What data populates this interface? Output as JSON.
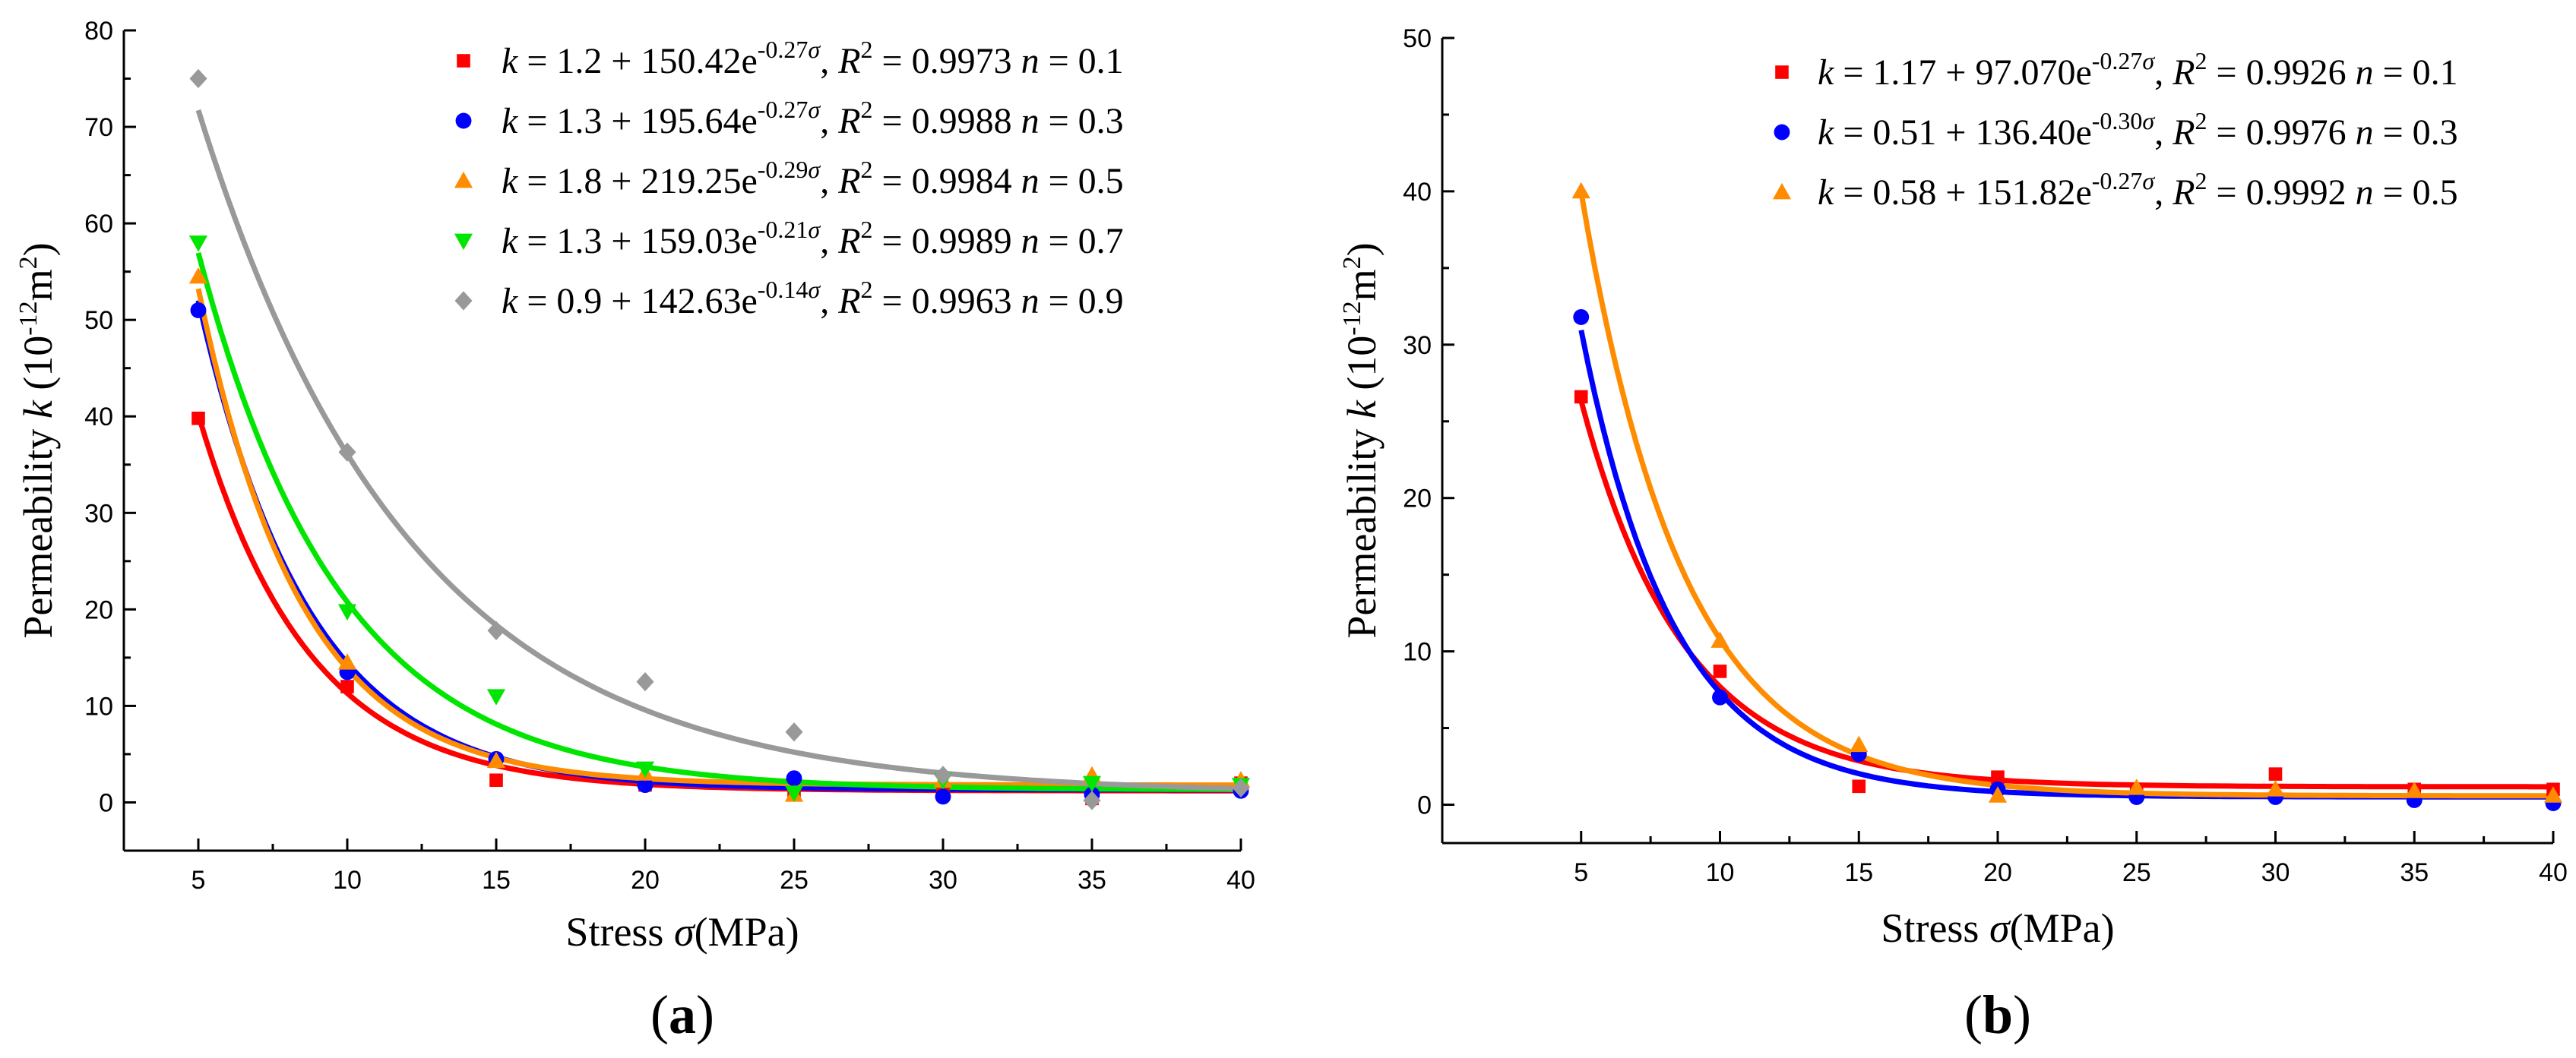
{
  "chart_data": [
    {
      "type": "scatter",
      "panel_label": {
        "open": "(",
        "letter": "a",
        "close": ")"
      },
      "xlabel": {
        "text": "Stress ",
        "symbol": "σ",
        "unit": "(MPa)"
      },
      "ylabel": {
        "text": "Permeability ",
        "symbol": "k",
        "unit_prefix": " (10",
        "unit_exp": "-12",
        "unit_mid": "m",
        "unit_exp2": "2",
        "unit_suffix": ")"
      },
      "xlim": [
        2.5,
        40
      ],
      "ylim": [
        -5,
        80
      ],
      "x_ticks": [
        5,
        10,
        15,
        20,
        25,
        30,
        35,
        40
      ],
      "y_ticks": [
        0,
        10,
        20,
        30,
        40,
        50,
        60,
        70,
        80
      ],
      "x": [
        5,
        10,
        15,
        20,
        25,
        30,
        35,
        40
      ],
      "legend_position": "top-right",
      "series": [
        {
          "name": "n = 0.1",
          "color": "#ff0000",
          "marker": "square",
          "values": [
            39.8,
            12.0,
            2.3,
            1.8,
            1.0,
            0.8,
            0.4,
            2.0
          ],
          "fit": {
            "a": 1.2,
            "b": 150.42,
            "c": 0.27
          },
          "legend": {
            "a": "1.2",
            "b": "150.42",
            "exp": "-0.27",
            "r2": "0.9973",
            "n": "0.1"
          }
        },
        {
          "name": "n = 0.3",
          "color": "#0000ff",
          "marker": "circle",
          "values": [
            51.0,
            13.5,
            4.5,
            1.8,
            2.5,
            0.6,
            0.8,
            1.2
          ],
          "fit": {
            "a": 1.3,
            "b": 195.64,
            "c": 0.27
          },
          "legend": {
            "a": "1.3",
            "b": "195.64",
            "exp": "-0.27",
            "r2": "0.9988",
            "n": "0.3"
          }
        },
        {
          "name": "n = 0.5",
          "color": "#ff8c00",
          "marker": "triangle-up",
          "values": [
            54.5,
            14.5,
            4.3,
            3.0,
            0.8,
            2.3,
            2.8,
            2.3
          ],
          "fit": {
            "a": 1.8,
            "b": 219.25,
            "c": 0.29
          },
          "legend": {
            "a": "1.8",
            "b": "219.25",
            "exp": "-0.29",
            "r2": "0.9984",
            "n": "0.5"
          }
        },
        {
          "name": "n = 0.7",
          "color": "#00e600",
          "marker": "triangle-down",
          "values": [
            58.0,
            19.8,
            11.0,
            3.5,
            1.0,
            2.3,
            2.0,
            1.8
          ],
          "fit": {
            "a": 1.3,
            "b": 159.03,
            "c": 0.21
          },
          "legend": {
            "a": "1.3",
            "b": "159.03",
            "exp": "-0.21",
            "r2": "0.9989",
            "n": "0.7"
          }
        },
        {
          "name": "n = 0.9",
          "color": "#999999",
          "marker": "diamond",
          "values": [
            75.0,
            36.3,
            17.8,
            12.5,
            7.3,
            2.8,
            0.2,
            1.5
          ],
          "fit": {
            "a": 0.9,
            "b": 142.63,
            "c": 0.14
          },
          "legend": {
            "a": "0.9",
            "b": "142.63",
            "exp": "-0.14",
            "r2": "0.9963",
            "n": "0.9"
          }
        }
      ]
    },
    {
      "type": "scatter",
      "panel_label": {
        "open": "(",
        "letter": "b",
        "close": ")"
      },
      "xlabel": {
        "text": "Stress ",
        "symbol": "σ",
        "unit": "(MPa)"
      },
      "ylabel": {
        "text": "Permeability ",
        "symbol": "k",
        "unit_prefix": " (10",
        "unit_exp": "-12",
        "unit_mid": "m",
        "unit_exp2": "2",
        "unit_suffix": ")"
      },
      "xlim": [
        0,
        40
      ],
      "ylim": [
        -2.5,
        50
      ],
      "x_ticks": [
        5,
        10,
        15,
        20,
        25,
        30,
        35,
        40
      ],
      "y_ticks": [
        0,
        10,
        20,
        30,
        40,
        50
      ],
      "x": [
        5,
        10,
        15,
        20,
        25,
        30,
        35,
        40
      ],
      "legend_position": "top-right",
      "series": [
        {
          "name": "n = 0.1",
          "color": "#ff0000",
          "marker": "square",
          "values": [
            26.6,
            8.7,
            1.2,
            1.8,
            1.0,
            2.0,
            1.0,
            1.0
          ],
          "fit": {
            "a": 1.17,
            "b": 97.07,
            "c": 0.27
          },
          "legend": {
            "a": "1.17",
            "b": "97.070",
            "exp": "-0.27",
            "r2": "0.9926",
            "n": "0.1"
          }
        },
        {
          "name": "n = 0.3",
          "color": "#0000ff",
          "marker": "circle",
          "values": [
            31.8,
            7.0,
            3.3,
            1.0,
            0.5,
            0.5,
            0.3,
            0.1
          ],
          "fit": {
            "a": 0.51,
            "b": 136.4,
            "c": 0.3
          },
          "legend": {
            "a": "0.51",
            "b": "136.40",
            "exp": "-0.30",
            "r2": "0.9976",
            "n": "0.3"
          }
        },
        {
          "name": "n = 0.5",
          "color": "#ff8c00",
          "marker": "triangle-up",
          "values": [
            40.0,
            10.7,
            3.9,
            0.6,
            1.1,
            1.0,
            0.9,
            0.6
          ],
          "fit": {
            "a": 0.58,
            "b": 151.82,
            "c": 0.27
          },
          "legend": {
            "a": "0.58",
            "b": "151.82",
            "exp": "-0.27",
            "r2": "0.9992",
            "n": "0.5"
          }
        }
      ]
    }
  ]
}
